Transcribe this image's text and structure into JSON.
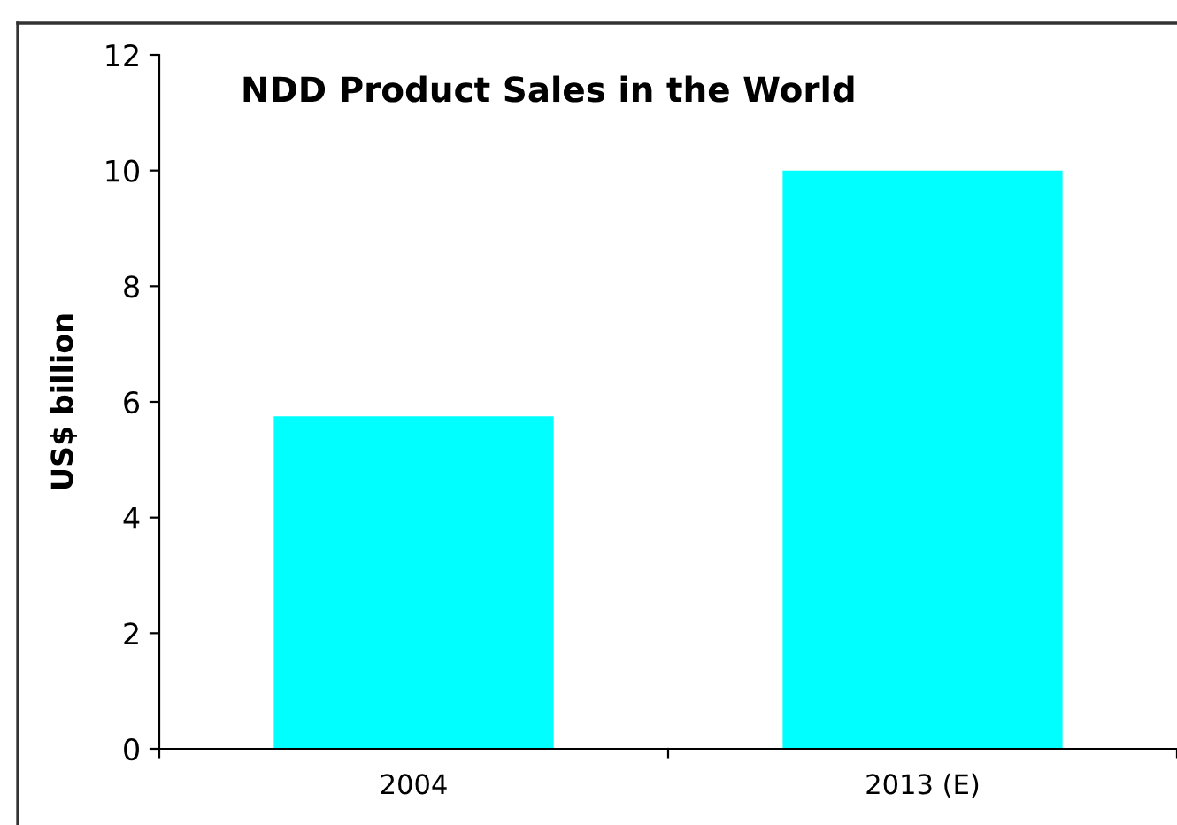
{
  "chart_data": {
    "type": "bar",
    "title": "NDD Product Sales in the World",
    "ylabel": "US$ billion",
    "categories": [
      "2004",
      "2013 (E)"
    ],
    "values": [
      5.75,
      10.0
    ],
    "color": "#00ffff",
    "ylim": [
      0,
      12
    ],
    "yticks": [
      0,
      2,
      4,
      6,
      8,
      10,
      12
    ],
    "grid": false,
    "legend": false
  }
}
